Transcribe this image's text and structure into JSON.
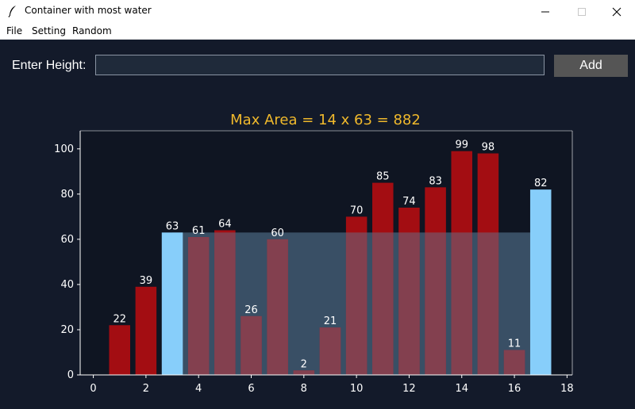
{
  "window": {
    "title": "Container with most water"
  },
  "menu": {
    "items": [
      "File",
      "Setting",
      "Random"
    ]
  },
  "form": {
    "label": "Enter Height:",
    "input_value": "",
    "add_label": "Add"
  },
  "colors": {
    "background": "#131a2a",
    "bar_default": "#a30d12",
    "bar_selected": "#87cefa",
    "water_fill": "#5d7f9c",
    "title": "#f0b92c"
  },
  "chart_data": {
    "type": "bar",
    "title": "Max Area = 14 x 63 = 882",
    "x": [
      1,
      2,
      3,
      4,
      5,
      6,
      7,
      8,
      9,
      10,
      11,
      12,
      13,
      14,
      15,
      16,
      17
    ],
    "values": [
      22,
      39,
      63,
      61,
      64,
      26,
      60,
      2,
      21,
      70,
      85,
      74,
      83,
      99,
      98,
      11,
      82
    ],
    "selected_indices": [
      2,
      16
    ],
    "water_level": 63,
    "xlim": [
      -0.5,
      18.2
    ],
    "ylim": [
      0,
      108
    ],
    "xticks": [
      0,
      2,
      4,
      6,
      8,
      10,
      12,
      14,
      16,
      18
    ],
    "yticks": [
      0,
      20,
      40,
      60,
      80,
      100
    ],
    "grid": false
  }
}
